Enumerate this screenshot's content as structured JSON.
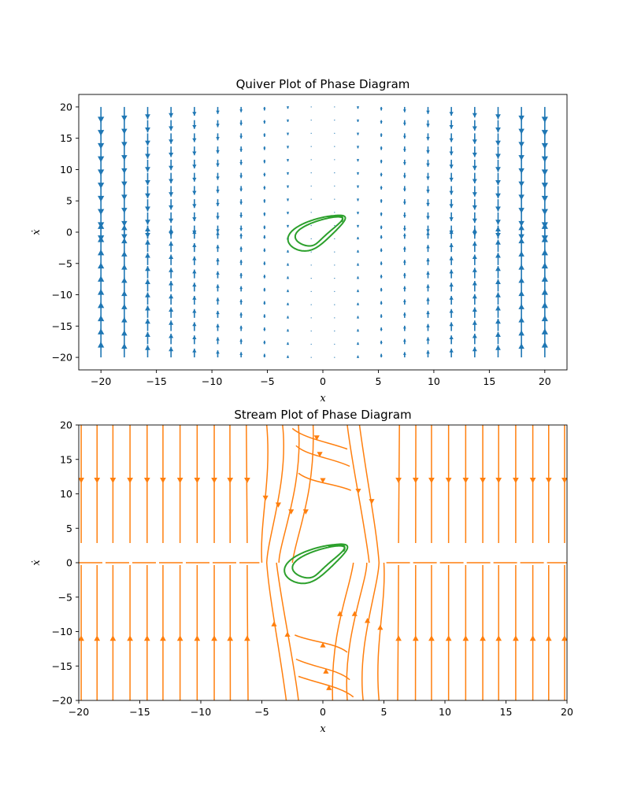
{
  "chart_data": [
    {
      "type": "quiver",
      "title": "Quiver Plot of Phase Diagram",
      "xlabel": "x",
      "ylabel": "ẋ",
      "xlim": [
        -22,
        22
      ],
      "ylim": [
        -22,
        22
      ],
      "xticks": [
        -20,
        -15,
        -10,
        -5,
        0,
        5,
        10,
        15,
        20
      ],
      "yticks": [
        -20,
        -15,
        -10,
        -5,
        0,
        5,
        10,
        15,
        20
      ],
      "grid": false,
      "vector_field": {
        "x_range": [
          -20,
          20
        ],
        "y_range": [
          -20,
          20
        ],
        "grid_n": 20,
        "color": "#1f77b4"
      },
      "trajectory": {
        "color": "#2ca02c",
        "center": [
          -0.5,
          0
        ],
        "amplitude_x": 2.3,
        "amplitude_y": 2.7
      }
    },
    {
      "type": "stream",
      "title": "Stream Plot of Phase Diagram",
      "xlabel": "x",
      "ylabel": "ẋ",
      "xlim": [
        -20,
        20
      ],
      "ylim": [
        -20,
        20
      ],
      "xticks": [
        -20,
        -15,
        -10,
        -5,
        0,
        5,
        10,
        15,
        20
      ],
      "yticks": [
        -20,
        -15,
        -10,
        -5,
        0,
        5,
        10,
        15,
        20
      ],
      "grid": false,
      "stream": {
        "color": "#ff7f0e",
        "top_arrow_y": 12,
        "bottom_arrow_y": -11
      },
      "trajectory": {
        "color": "#2ca02c",
        "center": [
          -0.5,
          0
        ],
        "amplitude_x": 2.3,
        "amplitude_y": 2.7
      }
    }
  ]
}
